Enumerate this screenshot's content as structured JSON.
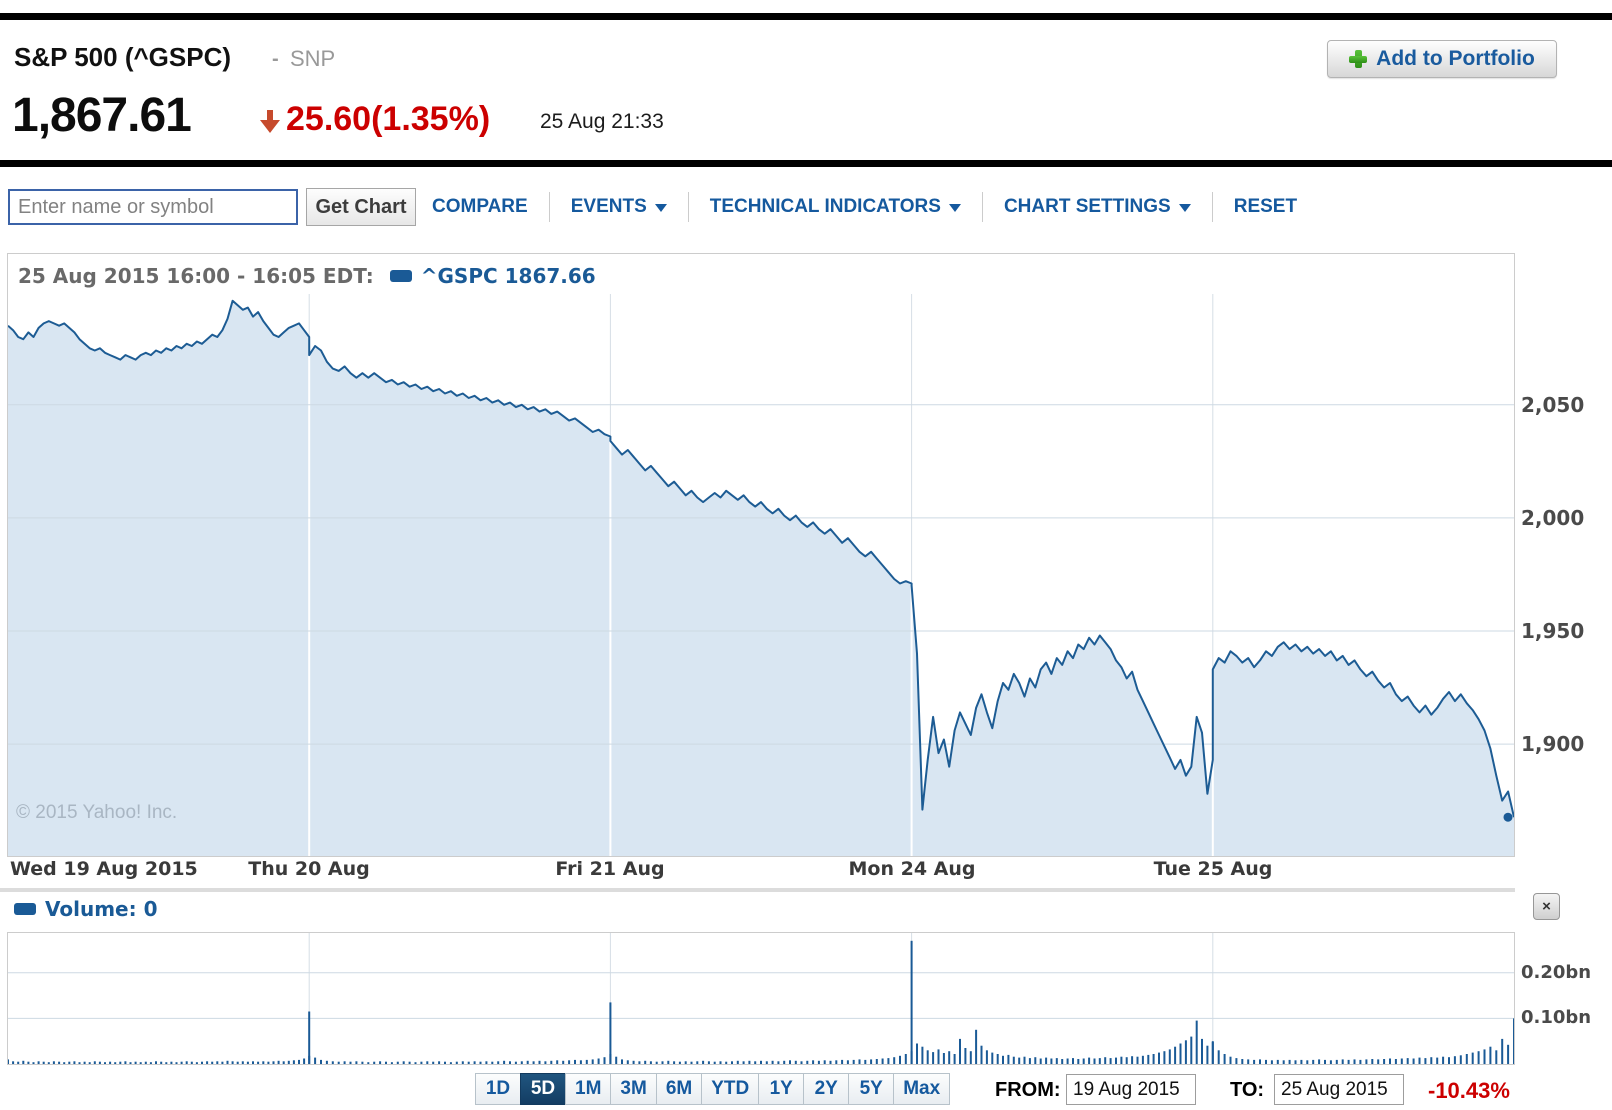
{
  "header": {
    "title": "S&P 500 (^GSPC)",
    "separator": "-",
    "exchange": "SNP",
    "price": "1,867.61",
    "change": "25.60",
    "change_pct": "(1.35%)",
    "timestamp": "25 Aug 21:33",
    "add_to_portfolio": "Add to Portfolio"
  },
  "toolbar": {
    "search_placeholder": "Enter name or symbol",
    "get_chart": "Get Chart",
    "menus": [
      {
        "label": "COMPARE",
        "has_arrow": false
      },
      {
        "label": "EVENTS",
        "has_arrow": true
      },
      {
        "label": "TECHNICAL INDICATORS",
        "has_arrow": true
      },
      {
        "label": "CHART SETTINGS",
        "has_arrow": true
      },
      {
        "label": "RESET",
        "has_arrow": false
      }
    ]
  },
  "legend": {
    "datetime": "25 Aug 2015 16:00 - 16:05 EDT:",
    "series_label": "^GSPC 1867.66"
  },
  "watermark": "© 2015 Yahoo! Inc.",
  "volume_legend": "Volume: 0",
  "icons": {
    "close": "×"
  },
  "bottom": {
    "range_buttons": [
      "1D",
      "5D",
      "1M",
      "3M",
      "6M",
      "YTD",
      "1Y",
      "2Y",
      "5Y",
      "Max"
    ],
    "selected_range": "5D",
    "from_label": "FROM:",
    "from_value": "19 Aug 2015",
    "to_label": "TO:",
    "to_value": "25 Aug 2015",
    "total_change": "-10.43%"
  },
  "chart_data": {
    "type": "area",
    "title": "S&P 500 (^GSPC) 5-day intraday price with volume",
    "colors": {
      "line": "#1d5c94",
      "fill": "#d9e6f2",
      "grid": "#cdd9e3",
      "sep_above": "#d6dee5",
      "sep_in_fill": "#ffffff",
      "bar": "#1a5a96"
    },
    "price": {
      "ylim": [
        1850.5,
        2099
      ],
      "yticks": [
        1900,
        1950,
        2000,
        2050
      ],
      "ytick_labels": [
        "1,900",
        "1,950",
        "2,000",
        "2,050"
      ],
      "last_value": 1867.66,
      "days": [
        {
          "label": "Wed 19 Aug 2015",
          "values": [
            2085,
            2083,
            2080,
            2079,
            2082,
            2080,
            2084,
            2086,
            2087,
            2086,
            2085,
            2086,
            2084,
            2082,
            2079,
            2077,
            2075,
            2074,
            2075,
            2073,
            2072,
            2071,
            2070,
            2072,
            2071,
            2070,
            2072,
            2073,
            2072,
            2074,
            2073,
            2075,
            2074,
            2076,
            2075,
            2077,
            2076,
            2078,
            2077,
            2079,
            2081,
            2080,
            2083,
            2088,
            2096,
            2094,
            2092,
            2093,
            2089,
            2091,
            2087,
            2084,
            2081,
            2080,
            2082,
            2084,
            2085,
            2086,
            2083,
            2080
          ]
        },
        {
          "label": "Thu 20 Aug",
          "values": [
            2072,
            2076,
            2074,
            2069,
            2066,
            2065,
            2067,
            2064,
            2062,
            2064,
            2062,
            2064,
            2062,
            2060,
            2061,
            2059,
            2060,
            2058,
            2059,
            2057,
            2058,
            2056,
            2057,
            2055,
            2056,
            2054,
            2055,
            2053,
            2054,
            2052,
            2053,
            2051,
            2052,
            2050,
            2051,
            2049,
            2050,
            2048,
            2049,
            2047,
            2048,
            2046,
            2047,
            2045,
            2043,
            2044,
            2042,
            2040,
            2038,
            2039,
            2037,
            2036
          ]
        },
        {
          "label": "Fri 21 Aug",
          "values": [
            2034,
            2031,
            2028,
            2030,
            2027,
            2024,
            2021,
            2023,
            2020,
            2017,
            2014,
            2016,
            2013,
            2010,
            2012,
            2009,
            2007,
            2009,
            2011,
            2009,
            2012,
            2010,
            2008,
            2010,
            2007,
            2005,
            2007,
            2004,
            2002,
            2004,
            2001,
            1999,
            2001,
            1998,
            1996,
            1998,
            1995,
            1993,
            1995,
            1992,
            1989,
            1991,
            1988,
            1985,
            1983,
            1985,
            1982,
            1979,
            1976,
            1973,
            1971,
            1972,
            1971
          ]
        },
        {
          "label": "Mon 24 Aug",
          "values": [
            1970,
            1940,
            1871,
            1893,
            1912,
            1896,
            1902,
            1890,
            1906,
            1914,
            1909,
            1904,
            1916,
            1922,
            1914,
            1907,
            1919,
            1927,
            1924,
            1931,
            1927,
            1921,
            1929,
            1925,
            1933,
            1936,
            1931,
            1938,
            1935,
            1941,
            1938,
            1944,
            1942,
            1947,
            1944,
            1948,
            1945,
            1942,
            1937,
            1934,
            1929,
            1932,
            1924,
            1919,
            1914,
            1909,
            1904,
            1899,
            1894,
            1889,
            1893,
            1886,
            1890,
            1912,
            1905,
            1878,
            1893
          ]
        },
        {
          "label": "Tue 25 Aug",
          "values": [
            1933,
            1938,
            1936,
            1941,
            1939,
            1936,
            1938,
            1934,
            1937,
            1941,
            1939,
            1943,
            1945,
            1942,
            1944,
            1941,
            1943,
            1940,
            1942,
            1939,
            1941,
            1937,
            1939,
            1935,
            1937,
            1933,
            1930,
            1932,
            1928,
            1925,
            1927,
            1922,
            1919,
            1921,
            1917,
            1914,
            1917,
            1913,
            1916,
            1920,
            1923,
            1919,
            1922,
            1918,
            1915,
            1911,
            1906,
            1898,
            1886,
            1875,
            1879,
            1867.66
          ]
        }
      ]
    },
    "volume": {
      "type": "bar",
      "unit": "bn",
      "ylim": [
        0,
        0.287
      ],
      "yticks": [
        0.1,
        0.2
      ],
      "ytick_labels": [
        "0.10bn",
        "0.20bn"
      ],
      "days": [
        {
          "values": [
            0.01,
            0.006,
            0.005,
            0.007,
            0.005,
            0.004,
            0.006,
            0.005,
            0.004,
            0.006,
            0.005,
            0.004,
            0.005,
            0.006,
            0.004,
            0.005,
            0.004,
            0.006,
            0.005,
            0.004,
            0.005,
            0.004,
            0.005,
            0.006,
            0.004,
            0.005,
            0.004,
            0.005,
            0.004,
            0.006,
            0.005,
            0.004,
            0.005,
            0.004,
            0.005,
            0.006,
            0.005,
            0.004,
            0.005,
            0.006,
            0.005,
            0.006,
            0.005,
            0.007,
            0.006,
            0.005,
            0.006,
            0.005,
            0.006,
            0.005,
            0.006,
            0.005,
            0.006,
            0.007,
            0.006,
            0.007,
            0.008,
            0.009,
            0.012,
            0.018
          ]
        },
        {
          "values": [
            0.115,
            0.014,
            0.009,
            0.007,
            0.006,
            0.005,
            0.006,
            0.005,
            0.006,
            0.005,
            0.004,
            0.005,
            0.006,
            0.005,
            0.004,
            0.005,
            0.006,
            0.005,
            0.004,
            0.005,
            0.006,
            0.005,
            0.006,
            0.005,
            0.004,
            0.005,
            0.006,
            0.005,
            0.006,
            0.005,
            0.006,
            0.005,
            0.006,
            0.007,
            0.006,
            0.005,
            0.006,
            0.007,
            0.006,
            0.007,
            0.006,
            0.007,
            0.008,
            0.007,
            0.008,
            0.009,
            0.008,
            0.009,
            0.01,
            0.012,
            0.015,
            0.022
          ]
        },
        {
          "values": [
            0.135,
            0.016,
            0.01,
            0.008,
            0.007,
            0.006,
            0.007,
            0.006,
            0.005,
            0.006,
            0.007,
            0.006,
            0.005,
            0.006,
            0.005,
            0.006,
            0.007,
            0.006,
            0.005,
            0.006,
            0.005,
            0.006,
            0.007,
            0.006,
            0.007,
            0.006,
            0.007,
            0.006,
            0.007,
            0.006,
            0.007,
            0.008,
            0.007,
            0.006,
            0.007,
            0.008,
            0.007,
            0.008,
            0.007,
            0.008,
            0.009,
            0.008,
            0.009,
            0.01,
            0.009,
            0.01,
            0.011,
            0.012,
            0.013,
            0.015,
            0.018,
            0.022,
            0.028
          ]
        },
        {
          "values": [
            0.27,
            0.045,
            0.038,
            0.03,
            0.026,
            0.032,
            0.024,
            0.028,
            0.022,
            0.055,
            0.035,
            0.028,
            0.075,
            0.04,
            0.03,
            0.025,
            0.022,
            0.018,
            0.02,
            0.016,
            0.014,
            0.016,
            0.013,
            0.015,
            0.012,
            0.014,
            0.012,
            0.013,
            0.011,
            0.012,
            0.013,
            0.011,
            0.012,
            0.014,
            0.012,
            0.013,
            0.015,
            0.013,
            0.014,
            0.016,
            0.015,
            0.017,
            0.016,
            0.018,
            0.02,
            0.022,
            0.025,
            0.028,
            0.032,
            0.038,
            0.045,
            0.052,
            0.06,
            0.095,
            0.055,
            0.04,
            0.048
          ]
        },
        {
          "values": [
            0.05,
            0.03,
            0.022,
            0.016,
            0.013,
            0.011,
            0.01,
            0.009,
            0.01,
            0.009,
            0.008,
            0.009,
            0.008,
            0.009,
            0.008,
            0.009,
            0.008,
            0.009,
            0.01,
            0.009,
            0.008,
            0.009,
            0.01,
            0.009,
            0.01,
            0.009,
            0.01,
            0.011,
            0.01,
            0.011,
            0.012,
            0.011,
            0.012,
            0.013,
            0.012,
            0.014,
            0.013,
            0.015,
            0.014,
            0.016,
            0.015,
            0.017,
            0.019,
            0.022,
            0.025,
            0.028,
            0.032,
            0.038,
            0.03,
            0.055,
            0.042,
            0.1
          ]
        }
      ]
    }
  }
}
